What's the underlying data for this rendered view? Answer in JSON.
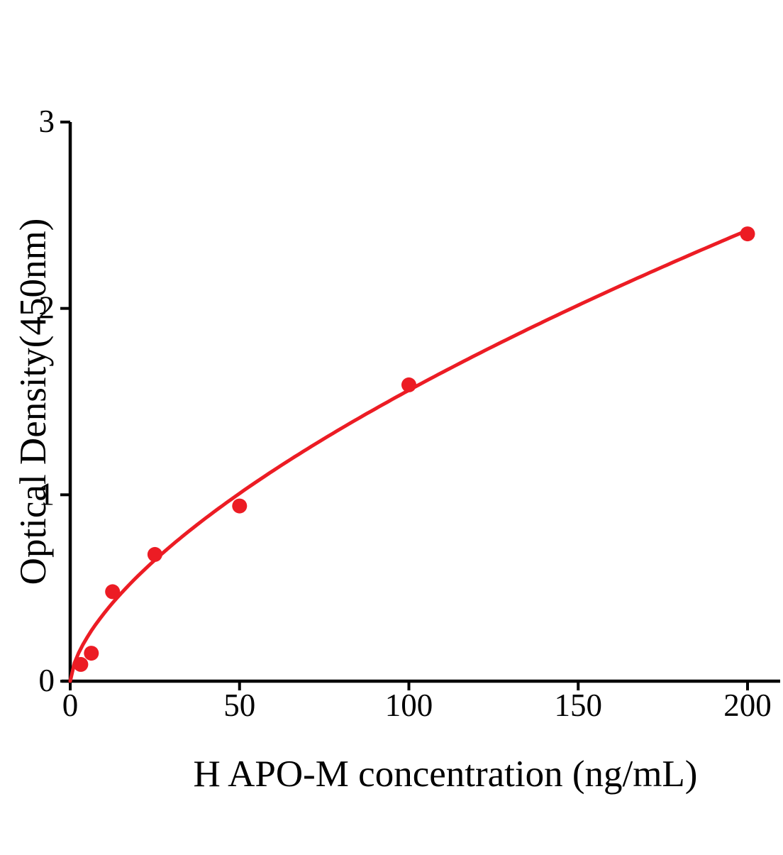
{
  "chart_data": {
    "type": "scatter",
    "title": "",
    "xlabel": "H APO-M concentration (ng/mL)",
    "ylabel": "Optical Density(450nm)",
    "xlim": [
      0,
      200
    ],
    "ylim": [
      0,
      3
    ],
    "xticks": [
      0,
      50,
      100,
      150,
      200
    ],
    "yticks": [
      0,
      1,
      2,
      3
    ],
    "grid": false,
    "legend": "none",
    "points": [
      {
        "x": 3.125,
        "y": 0.09
      },
      {
        "x": 6.25,
        "y": 0.15
      },
      {
        "x": 12.5,
        "y": 0.48
      },
      {
        "x": 25,
        "y": 0.68
      },
      {
        "x": 50,
        "y": 0.94
      },
      {
        "x": 100,
        "y": 1.59
      },
      {
        "x": 200,
        "y": 2.4
      }
    ],
    "fit_curve": {
      "type": "power",
      "a": 0.085,
      "b": 0.632,
      "x_start": 0,
      "x_end": 200
    },
    "colors": {
      "series": "#ec1c24",
      "axis": "#000000"
    }
  }
}
